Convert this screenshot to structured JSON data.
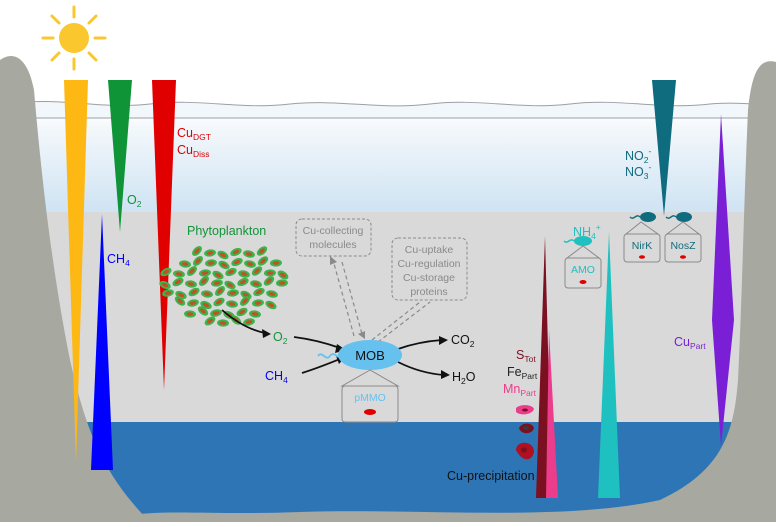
{
  "colors": {
    "sky_top": "#ffffff",
    "epilimnion": "#d8e9f6",
    "hypolimnion": "#d9d9d9",
    "anoxic_water": "#2e75b6",
    "shore": "#a7a9a0",
    "sun": "#fbc72f",
    "light": "#fdb813",
    "oxygen": "#109438",
    "methane": "#0000ff",
    "copper_dgt": "#e00000",
    "nitrate": "#0f6b7e",
    "ammonium": "#1fc0c0",
    "sulfur": "#7a1020",
    "manganese": "#ec3c8c",
    "copper_part": "#7a1fd6",
    "mob_cell": "#66c1ef",
    "phytoplankton_outer": "#3bb54a",
    "phytoplankton_inner": "#c0522a"
  },
  "icons": [
    "sun-icon",
    "phytoplankton-cluster-icon",
    "mob-cell-icon",
    "ammonia-oxidizer-icon",
    "denitrifier-icon",
    "precipitate-particle-icon"
  ],
  "labels": {
    "cu_dgt": {
      "main": "Cu",
      "sub": "DGT"
    },
    "cu_diss": {
      "main": "Cu",
      "sub": "Diss"
    },
    "o2_top": {
      "main": "O",
      "sub": "2"
    },
    "ch4_left": {
      "main": "CH",
      "sub": "4"
    },
    "phytoplankton": "Phytoplankton",
    "o2_mid": {
      "main": "O",
      "sub": "2"
    },
    "ch4_mid": {
      "main": "CH",
      "sub": "4"
    },
    "co2": {
      "main": "CO",
      "sub": "2"
    },
    "h2o": {
      "pre": "H",
      "sub": "2",
      "post": "O"
    },
    "mob": "MOB",
    "pmmo": "pMMO",
    "cu_collecting": [
      "Cu-collecting",
      "molecules"
    ],
    "cu_uptake": [
      "Cu-uptake",
      "Cu-regulation",
      "Cu-storage",
      "proteins"
    ],
    "no2": {
      "main": "NO",
      "sub": "2",
      "sup": "-"
    },
    "no3": {
      "main": "NO",
      "sub": "3",
      "sup": "-"
    },
    "nh4": {
      "main": "NH",
      "sub": "4",
      "sup": "+"
    },
    "amo": "AMO",
    "nirk": "NirK",
    "nosz": "NosZ",
    "s_tot": {
      "main": "S",
      "sub": "Tot"
    },
    "fe_part": {
      "main": "Fe",
      "sub": "Part"
    },
    "mn_part": {
      "main": "Mn",
      "sub": "Part"
    },
    "cu_precipitation": "Cu-precipitation",
    "cu_part": {
      "main": "Cu",
      "sub": "Part"
    }
  }
}
